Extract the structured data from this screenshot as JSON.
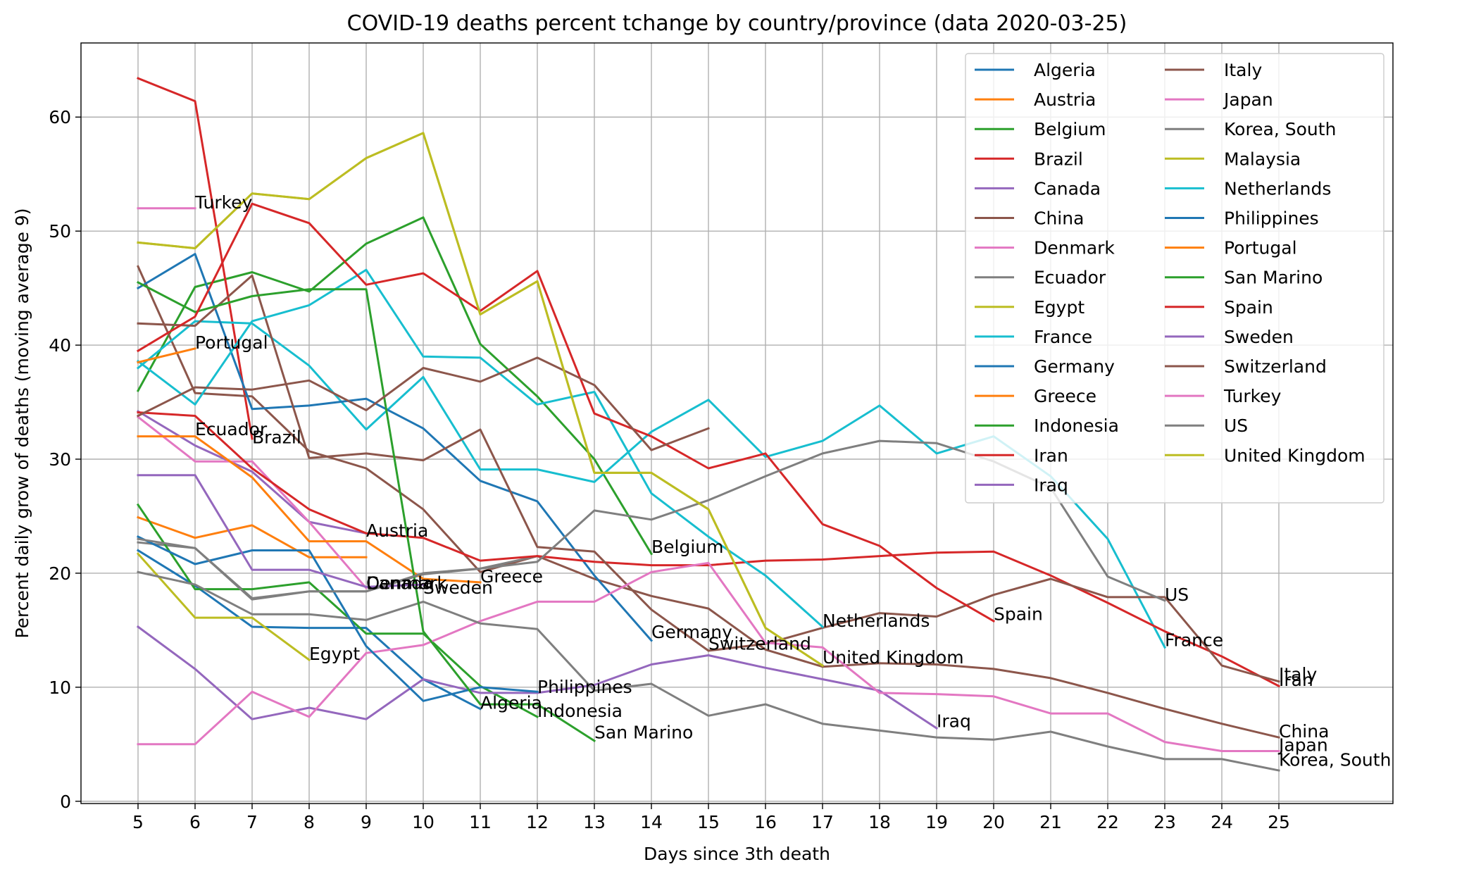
{
  "chart_data": {
    "type": "line",
    "title": "COVID-19 deaths percent tchange by country/province (data 2020-03-25)",
    "xlabel": "Days since 3th death",
    "ylabel": "Percent daily grow of deaths (moving average 9)",
    "xlim": [
      4,
      27
    ],
    "ylim": [
      -0.2,
      66.5
    ],
    "xticks": [
      5,
      6,
      7,
      8,
      9,
      10,
      11,
      12,
      13,
      14,
      15,
      16,
      17,
      18,
      19,
      20,
      21,
      22,
      23,
      24,
      25
    ],
    "yticks": [
      0,
      10,
      20,
      30,
      40,
      50,
      60
    ],
    "grid": true,
    "legend": "top-right, two columns",
    "series": [
      {
        "name": "Algeria",
        "color": "#1f77b4",
        "x": [
          5,
          6,
          7,
          8,
          9,
          10,
          11
        ],
        "values": [
          22.0,
          18.9,
          15.3,
          15.2,
          15.2,
          10.7,
          8.1
        ]
      },
      {
        "name": "Austria",
        "color": "#ff7f0e",
        "x": [
          5,
          6,
          7,
          8,
          9
        ],
        "values": [
          24.9,
          23.1,
          24.2,
          21.4,
          21.4
        ]
      },
      {
        "name": "Belgium",
        "color": "#2ca02c",
        "x": [
          5,
          6,
          7,
          8,
          9,
          10,
          11,
          12,
          13,
          14
        ],
        "values": [
          36.0,
          45.1,
          46.4,
          44.7,
          48.9,
          51.2,
          40.1,
          35.5,
          30.0,
          21.7
        ]
      },
      {
        "name": "Brazil",
        "color": "#d62728",
        "x": [
          5,
          6,
          7
        ],
        "values": [
          63.4,
          61.4,
          31.8
        ]
      },
      {
        "name": "Canada",
        "color": "#9467bd",
        "x": [
          5,
          6,
          7,
          8,
          9
        ],
        "values": [
          34.2,
          31.2,
          28.9,
          24.5,
          23.5
        ]
      },
      {
        "name": "China",
        "color": "#8c564b",
        "x": [
          5,
          6,
          7,
          8,
          9,
          10,
          11,
          12,
          13,
          14,
          15,
          16,
          17,
          18,
          19,
          20,
          21,
          22,
          23,
          24,
          25
        ],
        "values": [
          46.9,
          35.8,
          35.5,
          30.7,
          29.2,
          25.6,
          20.1,
          21.5,
          19.5,
          18.0,
          16.9,
          13.3,
          11.8,
          12.1,
          12.0,
          11.6,
          10.8,
          9.5,
          8.1,
          6.8,
          5.6
        ]
      },
      {
        "name": "Denmark",
        "color": "#e377c2",
        "x": [
          5,
          6,
          7,
          8,
          9
        ],
        "values": [
          33.7,
          29.8,
          29.8,
          24.5,
          18.7
        ]
      },
      {
        "name": "Ecuador",
        "color": "#7f7f7f",
        "x": [
          5,
          6,
          7,
          8,
          9,
          10,
          11,
          12
        ],
        "values": [
          22.7,
          22.2,
          17.8,
          18.4,
          18.4,
          19.9,
          20.4,
          21.5
        ]
      },
      {
        "name": "Egypt",
        "color": "#bcbd22",
        "x": [
          5,
          6,
          7,
          8
        ],
        "values": [
          21.7,
          16.1,
          16.1,
          12.4
        ]
      },
      {
        "name": "France",
        "color": "#17becf",
        "x": [
          5,
          6,
          7,
          8,
          9,
          10,
          11,
          12,
          13,
          14,
          15,
          16,
          17,
          18,
          19,
          20,
          21,
          22,
          23
        ],
        "values": [
          38.0,
          42.1,
          41.9,
          38.2,
          32.6,
          37.2,
          29.1,
          29.1,
          28.0,
          32.4,
          35.2,
          30.2,
          31.6,
          34.7,
          30.5,
          32.0,
          28.5,
          23.0,
          13.5
        ]
      },
      {
        "name": "Germany",
        "color": "#1f77b4",
        "x": [
          5,
          6,
          7,
          8,
          9,
          10,
          11,
          12,
          13,
          14
        ],
        "values": [
          45.0,
          48.0,
          34.4,
          34.7,
          35.3,
          32.7,
          28.1,
          26.3,
          19.8,
          14.1
        ]
      },
      {
        "name": "Greece",
        "color": "#ff7f0e",
        "x": [
          5,
          6,
          7,
          8,
          9,
          10,
          11
        ],
        "values": [
          32.0,
          32.0,
          28.4,
          22.8,
          22.8,
          19.5,
          19.2
        ]
      },
      {
        "name": "Indonesia",
        "color": "#2ca02c",
        "x": [
          5,
          6,
          7,
          8,
          9,
          10,
          11,
          12
        ],
        "values": [
          26.0,
          18.6,
          18.6,
          19.2,
          14.7,
          14.7,
          10.1,
          7.4
        ]
      },
      {
        "name": "Iran",
        "color": "#d62728",
        "x": [
          5,
          6,
          7,
          8,
          9,
          10,
          11,
          12,
          13,
          14,
          15,
          16,
          17,
          18,
          19,
          20,
          21,
          22,
          23,
          24,
          25
        ],
        "values": [
          34.1,
          33.8,
          29.2,
          25.6,
          23.5,
          23.1,
          21.1,
          21.5,
          21.0,
          20.7,
          20.7,
          21.1,
          21.2,
          21.5,
          21.8,
          21.9,
          19.8,
          17.4,
          14.9,
          12.7,
          10.1
        ]
      },
      {
        "name": "Iraq",
        "color": "#9467bd",
        "x": [
          5,
          6,
          7,
          8,
          9,
          10,
          11,
          12,
          13,
          14,
          15,
          16,
          17,
          18,
          19
        ],
        "values": [
          15.3,
          11.6,
          7.2,
          8.2,
          7.2,
          10.7,
          9.5,
          9.5,
          10.2,
          12.0,
          12.8,
          11.7,
          10.7,
          9.7,
          6.4
        ]
      },
      {
        "name": "Italy",
        "color": "#8c564b",
        "x": [
          5,
          6,
          7,
          8,
          9,
          10,
          11,
          12,
          13,
          14,
          15,
          16,
          17,
          18,
          19,
          20,
          21,
          22,
          23,
          24,
          25
        ],
        "values": [
          41.9,
          41.7,
          46.1,
          30.1,
          30.5,
          29.9,
          32.6,
          22.3,
          21.9,
          16.8,
          13.2,
          13.8,
          15.2,
          16.5,
          16.2,
          18.1,
          19.5,
          17.9,
          17.9,
          11.9,
          10.5
        ]
      },
      {
        "name": "Japan",
        "color": "#e377c2",
        "x": [
          5,
          6,
          7,
          8,
          9,
          10,
          11,
          12,
          13,
          14,
          15,
          16,
          17,
          18,
          19,
          20,
          21,
          22,
          23,
          24,
          25
        ],
        "values": [
          5.0,
          5.0,
          9.6,
          7.4,
          13.0,
          13.7,
          15.8,
          17.5,
          17.5,
          20.1,
          20.9,
          13.9,
          13.5,
          9.5,
          9.4,
          9.2,
          7.7,
          7.7,
          5.2,
          4.4,
          4.4
        ]
      },
      {
        "name": "Korea, South",
        "color": "#7f7f7f",
        "x": [
          5,
          6,
          7,
          8,
          9,
          10,
          11,
          12,
          13,
          14,
          15,
          16,
          17,
          18,
          19,
          20,
          21,
          22,
          23,
          24,
          25
        ],
        "values": [
          20.1,
          19.0,
          16.4,
          16.4,
          15.9,
          17.5,
          15.6,
          15.1,
          9.7,
          10.3,
          7.5,
          8.5,
          6.8,
          6.2,
          5.6,
          5.4,
          6.1,
          4.8,
          3.7,
          3.7,
          2.7
        ]
      },
      {
        "name": "Malaysia",
        "color": "#bcbd22",
        "x": [
          5,
          6,
          7,
          8,
          9,
          10,
          11,
          12,
          13,
          14,
          15,
          16,
          17
        ],
        "values": [
          49.0,
          48.5,
          53.3,
          52.8,
          56.4,
          58.6,
          42.7,
          45.6,
          28.8,
          28.8,
          25.6,
          15.2,
          11.9
        ]
      },
      {
        "name": "Netherlands",
        "color": "#17becf",
        "x": [
          5,
          6,
          7,
          8,
          9,
          10,
          11,
          12,
          13,
          14,
          15,
          16,
          17
        ],
        "values": [
          38.6,
          34.8,
          42.1,
          43.5,
          46.6,
          39.0,
          38.9,
          34.8,
          35.9,
          27.0,
          23.2,
          19.8,
          15.3
        ]
      },
      {
        "name": "Philippines",
        "color": "#1f77b4",
        "x": [
          5,
          6,
          7,
          8,
          9,
          10,
          11,
          12
        ],
        "values": [
          23.2,
          20.8,
          22.0,
          22.0,
          13.6,
          8.8,
          10.0,
          9.6
        ]
      },
      {
        "name": "Portugal",
        "color": "#ff7f0e",
        "x": [
          5,
          6
        ],
        "values": [
          38.5,
          39.7
        ]
      },
      {
        "name": "San Marino",
        "color": "#2ca02c",
        "x": [
          5,
          6,
          7,
          8,
          9,
          10,
          11,
          12,
          13
        ],
        "values": [
          45.5,
          42.9,
          44.3,
          44.9,
          44.9,
          14.9,
          8.5,
          8.5,
          5.3
        ]
      },
      {
        "name": "Spain",
        "color": "#d62728",
        "x": [
          5,
          6,
          7,
          8,
          9,
          10,
          11,
          12,
          13,
          14,
          15,
          16,
          17,
          18,
          19,
          20
        ],
        "values": [
          39.5,
          42.5,
          52.4,
          50.7,
          45.3,
          46.3,
          43.0,
          46.5,
          34.0,
          32.0,
          29.2,
          30.5,
          24.3,
          22.4,
          18.7,
          15.8
        ]
      },
      {
        "name": "Sweden",
        "color": "#9467bd",
        "x": [
          5,
          6,
          7,
          8,
          9,
          10
        ],
        "values": [
          28.6,
          28.6,
          20.3,
          20.3,
          18.8,
          19.0
        ]
      },
      {
        "name": "Switzerland",
        "color": "#8c564b",
        "x": [
          5,
          6,
          7,
          8,
          9,
          10,
          11,
          12,
          13,
          14,
          15
        ],
        "values": [
          33.8,
          36.3,
          36.1,
          36.9,
          34.3,
          38.0,
          36.8,
          38.9,
          36.5,
          30.8,
          32.7
        ]
      },
      {
        "name": "Turkey",
        "color": "#e377c2",
        "x": [
          5,
          6
        ],
        "values": [
          52.0,
          52.0
        ]
      },
      {
        "name": "US",
        "color": "#7f7f7f",
        "x": [
          5,
          6,
          7,
          8,
          9,
          10,
          11,
          12,
          13,
          14,
          15,
          16,
          17,
          18,
          19,
          20,
          21,
          22,
          23
        ],
        "values": [
          23.0,
          22.2,
          17.7,
          18.4,
          18.4,
          20.0,
          20.4,
          21.0,
          25.5,
          24.7,
          26.4,
          28.5,
          30.5,
          31.6,
          31.4,
          29.8,
          27.5,
          19.7,
          17.6
        ]
      },
      {
        "name": "United Kingdom",
        "color": "#bcbd22",
        "x": [
          5,
          6,
          7,
          8,
          9,
          10,
          11,
          12,
          13,
          14,
          15,
          16,
          17
        ],
        "values": [
          49.0,
          48.5,
          53.3,
          52.8,
          56.4,
          58.6,
          42.7,
          45.6,
          28.8,
          28.8,
          25.6,
          15.2,
          11.9
        ]
      }
    ],
    "annotations": [
      {
        "text": "Turkey",
        "x": 6,
        "y": 52.0
      },
      {
        "text": "Portugal",
        "x": 6,
        "y": 39.7
      },
      {
        "text": "Ecuador",
        "x": 6,
        "y": 32.1
      },
      {
        "text": "Brazil",
        "x": 7,
        "y": 31.4
      },
      {
        "text": "Austria",
        "x": 9,
        "y": 23.2
      },
      {
        "text": "Canada",
        "x": 9,
        "y": 18.6
      },
      {
        "text": "Denmark",
        "x": 9,
        "y": 18.6
      },
      {
        "text": "Sweden",
        "x": 10,
        "y": 18.2
      },
      {
        "text": "Greece",
        "x": 11,
        "y": 19.2
      },
      {
        "text": "Egypt",
        "x": 8,
        "y": 12.4
      },
      {
        "text": "Algeria",
        "x": 11,
        "y": 8.1
      },
      {
        "text": "Philippines",
        "x": 12,
        "y": 9.5
      },
      {
        "text": "Indonesia",
        "x": 12,
        "y": 7.4
      },
      {
        "text": "San Marino",
        "x": 13,
        "y": 5.5
      },
      {
        "text": "Belgium",
        "x": 14,
        "y": 21.8
      },
      {
        "text": "Germany",
        "x": 14,
        "y": 14.3
      },
      {
        "text": "Switzerland",
        "x": 15,
        "y": 13.3
      },
      {
        "text": "Netherlands",
        "x": 17,
        "y": 15.3
      },
      {
        "text": "United Kingdom",
        "x": 17,
        "y": 12.1
      },
      {
        "text": "Iraq",
        "x": 19,
        "y": 6.5
      },
      {
        "text": "Spain",
        "x": 20,
        "y": 15.9
      },
      {
        "text": "US",
        "x": 23,
        "y": 17.6
      },
      {
        "text": "France",
        "x": 23,
        "y": 13.6
      },
      {
        "text": "Italy",
        "x": 25,
        "y": 10.6
      },
      {
        "text": "Iran",
        "x": 25,
        "y": 10.1
      },
      {
        "text": "China",
        "x": 25,
        "y": 5.6
      },
      {
        "text": "Japan",
        "x": 25,
        "y": 4.4
      },
      {
        "text": "Korea, South",
        "x": 25,
        "y": 3.1
      }
    ]
  }
}
